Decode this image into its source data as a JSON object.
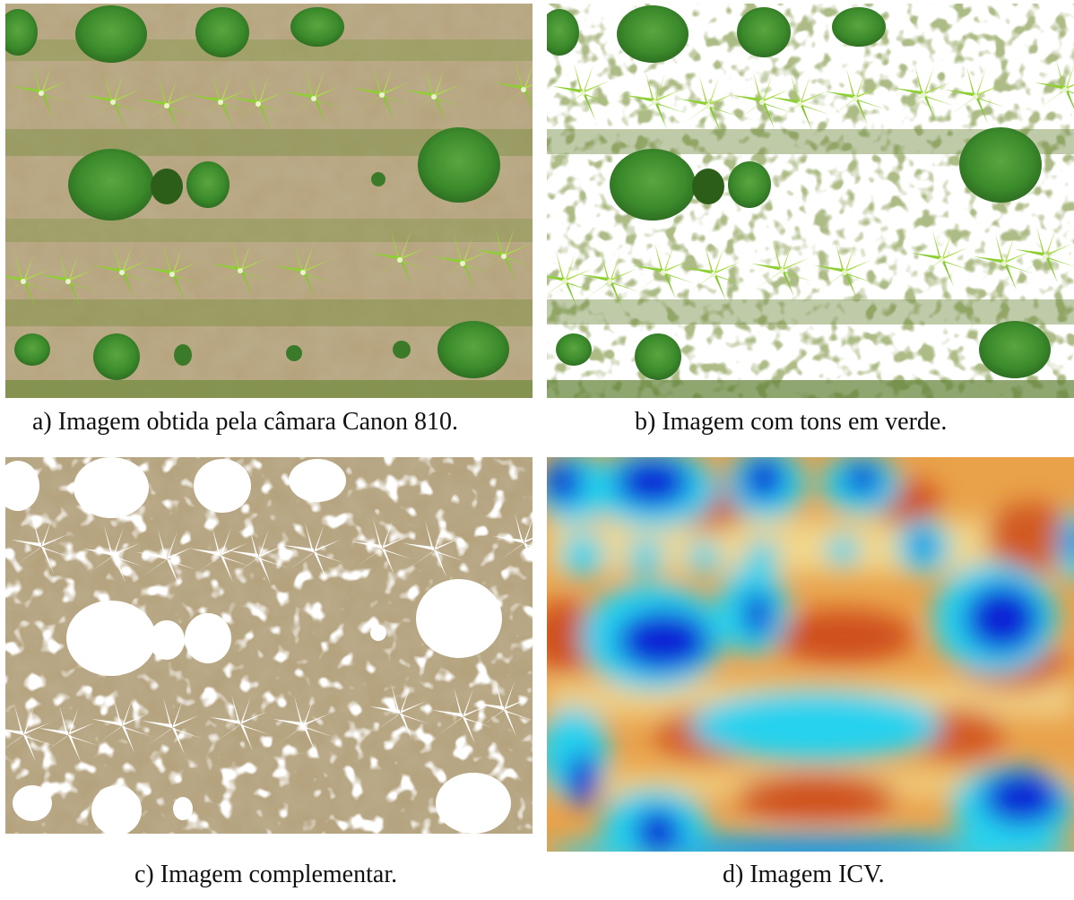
{
  "figure": {
    "panels": [
      {
        "id": "a",
        "caption": "a) Imagem obtida pela câmara Canon 810."
      },
      {
        "id": "b",
        "caption": "b) Imagem com tons em verde."
      },
      {
        "id": "c",
        "caption": "c) Imagem complementar."
      },
      {
        "id": "d",
        "caption": "d) Imagem ICV."
      }
    ]
  },
  "colors": {
    "soil": "#b7a178",
    "vegetation_green": "#3f8f2f",
    "banana_light_green": "#9bd43a",
    "background": "#ffffff",
    "icv_blue": "#0a1fd8",
    "icv_cyan": "#22d4f0",
    "icv_yellow": "#f3d78a",
    "icv_orange": "#e88a2e",
    "icv_red": "#cc4a1c"
  }
}
